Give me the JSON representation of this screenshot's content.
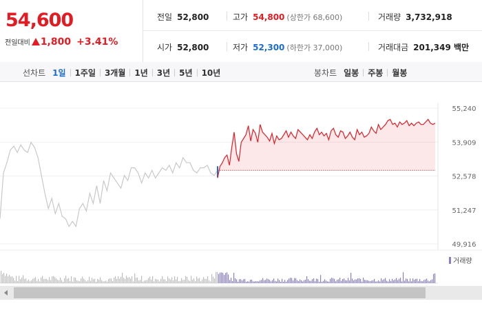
{
  "quote": {
    "price": "54,600",
    "change_label": "전일대비",
    "change_amount": "1,800",
    "change_percent": "+3.41%",
    "prev_close": {
      "label": "전일",
      "value": "52,800"
    },
    "high": {
      "label": "고가",
      "value": "54,800",
      "sub": "(상한가 68,600)"
    },
    "volume": {
      "label": "거래량",
      "value": "3,732,918"
    },
    "open": {
      "label": "시가",
      "value": "52,800"
    },
    "low": {
      "label": "저가",
      "value": "52,300",
      "sub": "(하한가 37,000)"
    },
    "trade_value": {
      "label": "거래대금",
      "value": "201,349 백만"
    }
  },
  "toolbar": {
    "line_chart_label": "선차트",
    "line_periods": [
      "1일",
      "1주일",
      "3개월",
      "1년",
      "3년",
      "5년",
      "10년"
    ],
    "selected_period": "1일",
    "candle_chart_label": "봉차트",
    "candle_periods": [
      "일봉",
      "주봉",
      "월봉"
    ]
  },
  "colors": {
    "up": "#e31b23",
    "down": "#1a6ccf",
    "prev_day_line": "#c8c8c8",
    "volume_prev": "#bdbdbd",
    "volume_today": "#8a7fc7"
  },
  "chart_data": {
    "type": "line",
    "y_ticks": [
      "55,240",
      "53,909",
      "52,578",
      "51,247",
      "49,916"
    ],
    "ylim": [
      49916,
      55240
    ],
    "baseline": 52800,
    "legend": "거래량",
    "series": [
      {
        "x": [
          0,
          1,
          2,
          3,
          4,
          5,
          6,
          7,
          8,
          9,
          10,
          11,
          12,
          13,
          14,
          15,
          16,
          17,
          18,
          19,
          20,
          21,
          22,
          23,
          24,
          25,
          26,
          27,
          28,
          29,
          30,
          31,
          32,
          33,
          34,
          35,
          36,
          37,
          38,
          39,
          40,
          41,
          42,
          43,
          44,
          45,
          46,
          47,
          48,
          49,
          50,
          51,
          52,
          53,
          54,
          55,
          56,
          57,
          58,
          59,
          60,
          61,
          62,
          63
        ],
        "y": [
          50900,
          52700,
          53100,
          53600,
          53750,
          53500,
          53800,
          53600,
          53500,
          53900,
          53700,
          53300,
          52600,
          51900,
          51300,
          51700,
          51100,
          51500,
          51000,
          50900,
          50600,
          50800,
          50600,
          51300,
          51500,
          51200,
          51900,
          51500,
          52200,
          51500,
          52400,
          52000,
          52700,
          52500,
          52300,
          52100,
          52600,
          52400,
          52900,
          52900,
          52700,
          52300,
          52700,
          52500,
          52800,
          52500,
          52700,
          52900,
          52800,
          53000,
          52700,
          53100,
          52900,
          53300,
          53100,
          53100,
          52800,
          52700,
          52900,
          52900,
          53000,
          52700,
          52600,
          52800
        ]
      },
      {
        "x": [
          0,
          1,
          2,
          3,
          4,
          5,
          6,
          7,
          8,
          9,
          10,
          11,
          12,
          13,
          14,
          15,
          16,
          17,
          18,
          19,
          20,
          21,
          22,
          23,
          24,
          25,
          26,
          27,
          28,
          29,
          30,
          31,
          32,
          33,
          34,
          35,
          36,
          37,
          38,
          39,
          40,
          41,
          42,
          43,
          44,
          45,
          46,
          47,
          48,
          49,
          50,
          51,
          52,
          53,
          54,
          55,
          56,
          57,
          58,
          59,
          60,
          61,
          62,
          63,
          64,
          65,
          66,
          67,
          68,
          69,
          70,
          71,
          72,
          73,
          74,
          75,
          76,
          77,
          78,
          79,
          80,
          81,
          82,
          83,
          84,
          85,
          86,
          87,
          88,
          89,
          90,
          91,
          92
        ],
        "y": [
          52500,
          52950,
          53100,
          53300,
          53400,
          53000,
          53700,
          54300,
          53450,
          53150,
          53900,
          54050,
          54200,
          54550,
          53950,
          54400,
          54250,
          53900,
          54600,
          54300,
          54200,
          54100,
          53950,
          54250,
          53850,
          54150,
          54000,
          54050,
          54200,
          54350,
          54100,
          54300,
          54150,
          54050,
          54400,
          54300,
          54200,
          54100,
          54000,
          54200,
          54050,
          54300,
          54450,
          54200,
          54300,
          54150,
          54250,
          54000,
          54350,
          54450,
          54200,
          54100,
          54350,
          54300,
          54050,
          54150,
          54300,
          54100,
          54000,
          54400,
          54200,
          54300,
          54100,
          54150,
          54250,
          54500,
          54350,
          54250,
          54600,
          54400,
          54500,
          54600,
          54750,
          54800,
          54600,
          54650,
          54500,
          54700,
          54600,
          54650,
          54750,
          54550,
          54650,
          54550,
          54650,
          54700,
          54600,
          54600,
          54700,
          54800,
          54650,
          54600,
          54650
        ]
      }
    ]
  }
}
